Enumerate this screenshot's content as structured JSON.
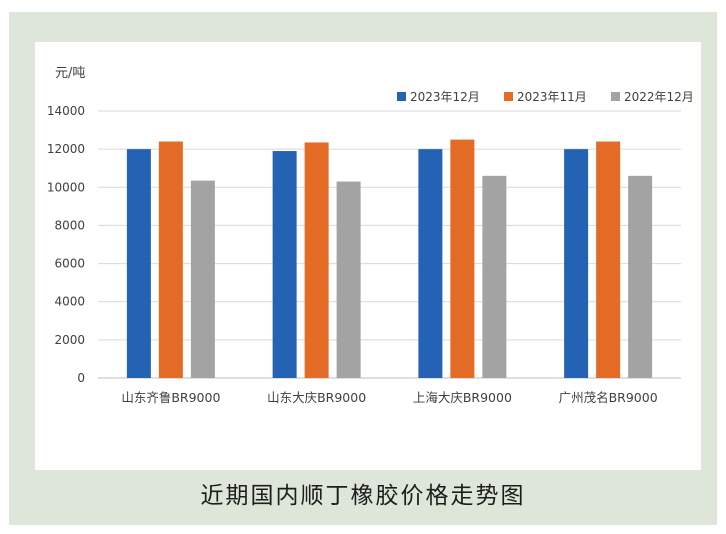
{
  "chart_data": {
    "type": "bar",
    "unit_label": "元/吨",
    "categories": [
      "山东齐鲁BR9000",
      "山东大庆BR9000",
      "上海大庆BR9000",
      "广州茂名BR9000"
    ],
    "series": [
      {
        "name": "2023年12月",
        "color": "#2462b4",
        "values": [
          12000,
          11900,
          12000,
          12000
        ]
      },
      {
        "name": "2023年11月",
        "color": "#e36b26",
        "values": [
          12400,
          12350,
          12500,
          12400
        ]
      },
      {
        "name": "2022年12月",
        "color": "#a3a3a3",
        "values": [
          10350,
          10300,
          10600,
          10600
        ]
      }
    ],
    "ylim": [
      0,
      14000
    ],
    "yticks": [
      0,
      2000,
      4000,
      6000,
      8000,
      10000,
      12000,
      14000
    ],
    "grid": true,
    "legend_position": "top-right"
  },
  "caption": "近期国内顺丁橡胶价格走势图"
}
